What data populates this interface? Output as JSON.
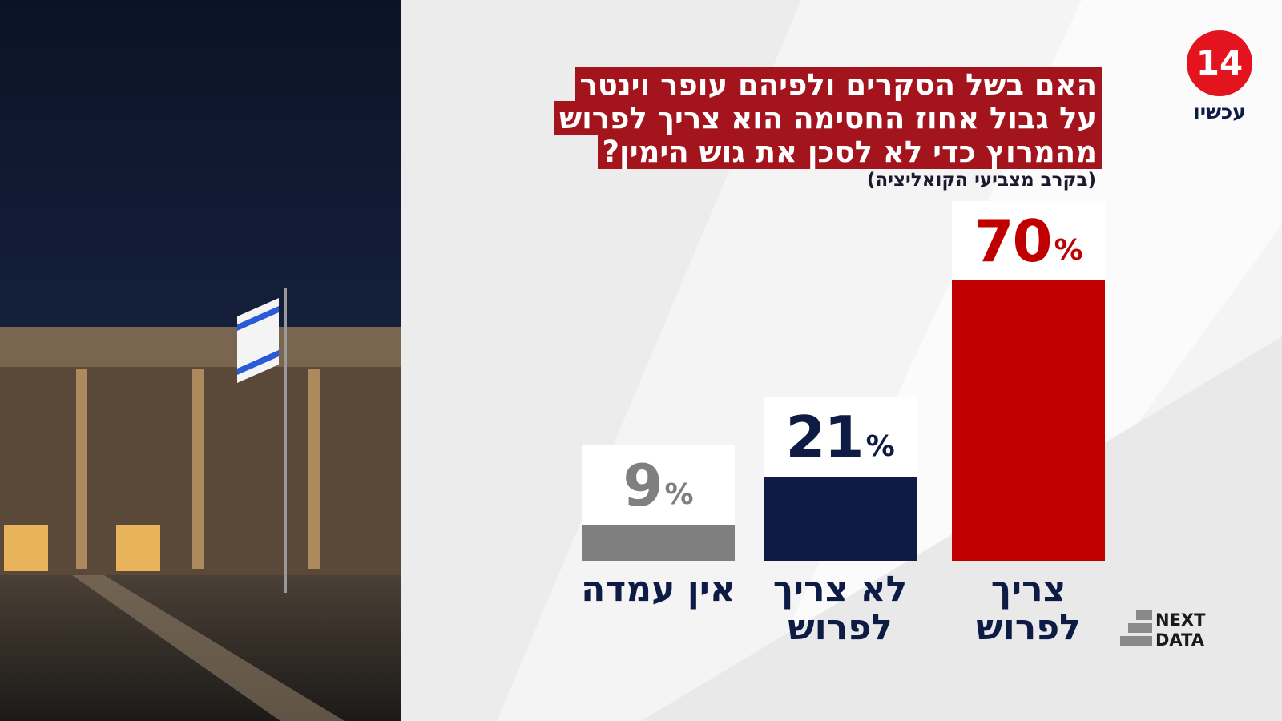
{
  "chart_data": {
    "type": "bar",
    "title": [
      "האם בשל הסקרים ולפיהם עופר וינטר",
      "על גבול אחוז החסימה הוא צריך לפרוש",
      "מהמרוץ כדי לא לסכן את גוש הימין?"
    ],
    "subtitle": "(בקרב מצביעי הקואליציה)",
    "categories": [
      "צריך לפרוש",
      "לא צריך לפרוש",
      "אין עמדה"
    ],
    "values": [
      70,
      21,
      9
    ],
    "value_labels": [
      "70%",
      "21%",
      "9%"
    ],
    "colors": [
      "#c00000",
      "#0d1b45",
      "#7f7f7f"
    ]
  },
  "branding": {
    "channel_number": "14",
    "channel_name": "עכשיו",
    "source": [
      "NEXT",
      "DATA"
    ]
  }
}
